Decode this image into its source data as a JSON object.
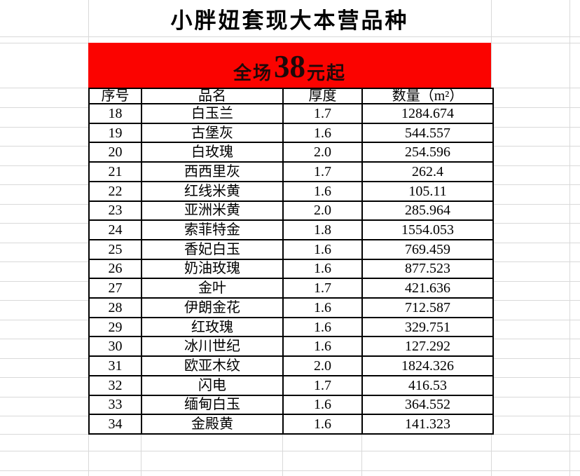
{
  "title": "小胖妞套现大本营品种",
  "banner": {
    "prefix": "全场",
    "price": "38",
    "suffix": "元起",
    "bg_color": "#fb0300",
    "text_color": "#1e0909"
  },
  "table": {
    "headers": [
      "序号",
      "品名",
      "厚度",
      "数量（m²）"
    ],
    "rows": [
      [
        "18",
        "白玉兰",
        "1.7",
        "1284.674"
      ],
      [
        "19",
        "古堡灰",
        "1.6",
        "544.557"
      ],
      [
        "20",
        "白玫瑰",
        "2.0",
        "254.596"
      ],
      [
        "21",
        "西西里灰",
        "1.7",
        "262.4"
      ],
      [
        "22",
        "红线米黄",
        "1.6",
        "105.11"
      ],
      [
        "23",
        "亚洲米黄",
        "2.0",
        "285.964"
      ],
      [
        "24",
        "索菲特金",
        "1.8",
        "1554.053"
      ],
      [
        "25",
        "香妃白玉",
        "1.6",
        "769.459"
      ],
      [
        "26",
        "奶油玫瑰",
        "1.6",
        "877.523"
      ],
      [
        "27",
        "金叶",
        "1.7",
        "421.636"
      ],
      [
        "28",
        "伊朗金花",
        "1.6",
        "712.587"
      ],
      [
        "29",
        "红玫瑰",
        "1.6",
        "329.751"
      ],
      [
        "30",
        "冰川世纪",
        "1.6",
        "127.292"
      ],
      [
        "31",
        "欧亚木纹",
        "2.0",
        "1824.326"
      ],
      [
        "32",
        "闪电",
        "1.7",
        "416.53"
      ],
      [
        "33",
        "缅甸白玉",
        "1.6",
        "364.552"
      ],
      [
        "34",
        "金殿黄",
        "1.6",
        "141.323"
      ]
    ]
  },
  "colors": {
    "table_border": "#000000",
    "gridline": "#d9d9d9",
    "background": "#ffffff"
  }
}
